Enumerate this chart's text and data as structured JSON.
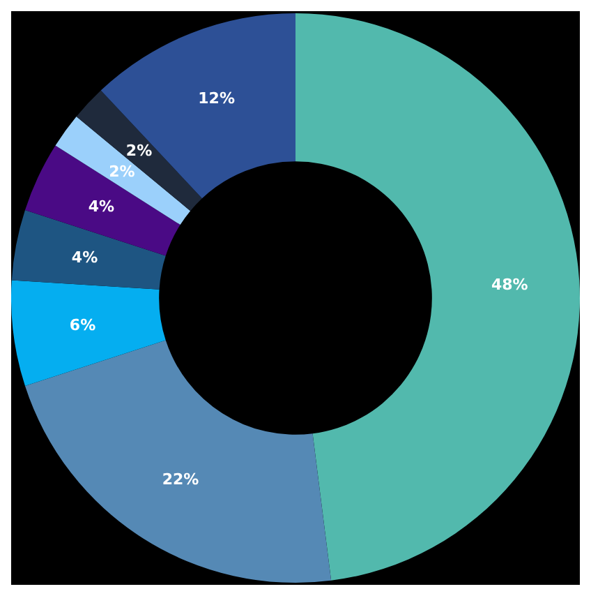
{
  "chart_data": {
    "type": "donut",
    "categories": [
      null,
      null,
      null,
      null,
      null,
      null,
      null,
      null
    ],
    "values": [
      48,
      22,
      6,
      4,
      4,
      2,
      2,
      12
    ],
    "value_labels": [
      "48%",
      "22%",
      "6%",
      "4%",
      "4%",
      "2%",
      "2%",
      "12%"
    ],
    "colors": [
      "#52b9ad",
      "#5589b5",
      "#05aef0",
      "#1e5582",
      "#4a0a85",
      "#9bd0fb",
      "#1f2a3c",
      "#2d5096"
    ]
  }
}
